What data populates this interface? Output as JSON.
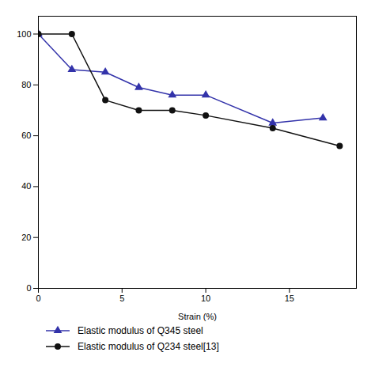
{
  "chart_data": {
    "type": "line",
    "xlabel": "Strain (%)",
    "series": [
      {
        "name": "Elastic modulus of Q345 steel",
        "color": "#3333aa",
        "marker": "triangle",
        "x": [
          0,
          2,
          4,
          6,
          8,
          10,
          14,
          17
        ],
        "values": [
          100,
          86,
          85,
          79,
          76,
          76,
          65,
          67
        ]
      },
      {
        "name": "Elastic modulus of Q234 steel[13]",
        "color": "#111111",
        "marker": "circle",
        "x": [
          0,
          2,
          4,
          6,
          8,
          10,
          14,
          18
        ],
        "values": [
          100,
          100,
          74,
          70,
          70,
          68,
          63,
          56
        ]
      }
    ],
    "xlim": [
      0,
      19
    ],
    "ylim": [
      0,
      107
    ],
    "xticks": [
      0,
      5,
      10,
      15
    ],
    "yticks": [
      0,
      20,
      40,
      60,
      80,
      100
    ],
    "grid": false,
    "legend": "bottom"
  }
}
